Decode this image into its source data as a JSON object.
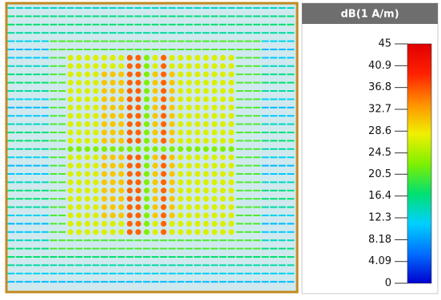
{
  "colorbar": {
    "title": "dB(1 A/m)",
    "ticks": [
      45,
      40.9,
      36.8,
      32.7,
      28.6,
      24.5,
      20.5,
      16.4,
      12.3,
      8.18,
      4.09,
      0
    ],
    "range": [
      0,
      45
    ],
    "colors": [
      "#0000d0",
      "#0070ff",
      "#00d0ff",
      "#00e070",
      "#80f000",
      "#f0f000",
      "#ff9000",
      "#ff2000",
      "#e00000"
    ]
  }
}
